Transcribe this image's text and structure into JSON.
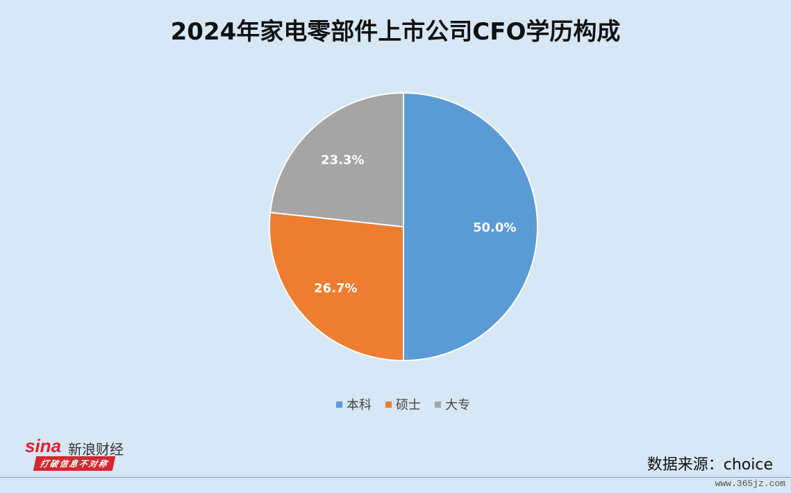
{
  "chart_data": {
    "type": "pie",
    "title": "2024年家电零部件上市公司CFO学历构成",
    "categories": [
      "本科",
      "硕士",
      "大专"
    ],
    "values": [
      50.0,
      26.7,
      23.3
    ],
    "data_labels": [
      "50.0%",
      "26.7%",
      "23.3%"
    ],
    "colors": [
      "#5b9bd5",
      "#ed7d31",
      "#a5a5a5"
    ],
    "legend_position": "bottom"
  },
  "source": "数据来源：choice",
  "logo": {
    "brand": "sina",
    "name": "新浪财经",
    "slogan": "打破信息不对称"
  },
  "watermark": "www.365jz.com"
}
